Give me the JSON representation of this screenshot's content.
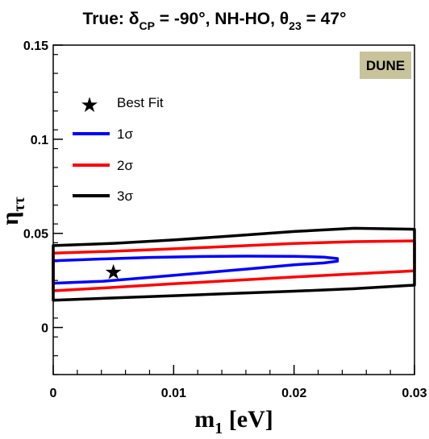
{
  "chart_data": {
    "type": "contour",
    "title": {
      "prefix": "True: ",
      "delta_symbol": "δ",
      "delta_sub": "CP",
      "delta_value": " = -90°, NH-HO, ",
      "theta_symbol": "θ",
      "theta_sub": "23",
      "theta_value": " = 47°"
    },
    "xlabel": {
      "symbol": "m",
      "sub": "1",
      "unit": " [eV]"
    },
    "ylabel": {
      "symbol": "η",
      "sub": "ττ"
    },
    "xlim": [
      0,
      0.03
    ],
    "ylim": [
      -0.025,
      0.15
    ],
    "x_ticks": [
      {
        "value": 0,
        "label": "0"
      },
      {
        "value": 0.01,
        "label": "0.01"
      },
      {
        "value": 0.02,
        "label": "0.02"
      },
      {
        "value": 0.03,
        "label": "0.03"
      }
    ],
    "y_ticks": [
      {
        "value": 0,
        "label": "0"
      },
      {
        "value": 0.05,
        "label": "0.05"
      },
      {
        "value": 0.1,
        "label": "0.1"
      },
      {
        "value": 0.15,
        "label": "0.15"
      }
    ],
    "experiment_label": "DUNE",
    "best_fit": {
      "x": 0.005,
      "y": 0.0295,
      "label": "Best Fit"
    },
    "series": [
      {
        "name": "1σ",
        "color": "#0000ff",
        "x": [
          0.0,
          0.004,
          0.008,
          0.012,
          0.016,
          0.02,
          0.0225,
          0.0236,
          0.0236,
          0.0225,
          0.02,
          0.016,
          0.012,
          0.008,
          0.004,
          0.0
        ],
        "y": [
          0.0354,
          0.0364,
          0.0372,
          0.0377,
          0.0379,
          0.0378,
          0.0374,
          0.0366,
          0.0352,
          0.0343,
          0.0333,
          0.031,
          0.0288,
          0.0266,
          0.0245,
          0.0235
        ]
      },
      {
        "name": "2σ",
        "color": "#ff0000",
        "x": [
          0.0,
          0.005,
          0.01,
          0.015,
          0.02,
          0.025,
          0.03,
          0.03,
          0.025,
          0.02,
          0.015,
          0.01,
          0.005,
          0.0
        ],
        "y": [
          0.0395,
          0.0405,
          0.0418,
          0.0432,
          0.0446,
          0.0456,
          0.046,
          0.0301,
          0.0285,
          0.0268,
          0.025,
          0.0232,
          0.0213,
          0.0195
        ]
      },
      {
        "name": "3σ",
        "color": "#000000",
        "x": [
          0.0,
          0.005,
          0.01,
          0.015,
          0.02,
          0.025,
          0.03,
          0.03,
          0.025,
          0.02,
          0.015,
          0.01,
          0.005,
          0.0
        ],
        "y": [
          0.0435,
          0.0447,
          0.0465,
          0.0487,
          0.051,
          0.0527,
          0.0522,
          0.0225,
          0.0206,
          0.0193,
          0.0181,
          0.0169,
          0.0157,
          0.0145
        ]
      }
    ],
    "legend": {
      "position": "upper-left"
    },
    "grid": false
  }
}
